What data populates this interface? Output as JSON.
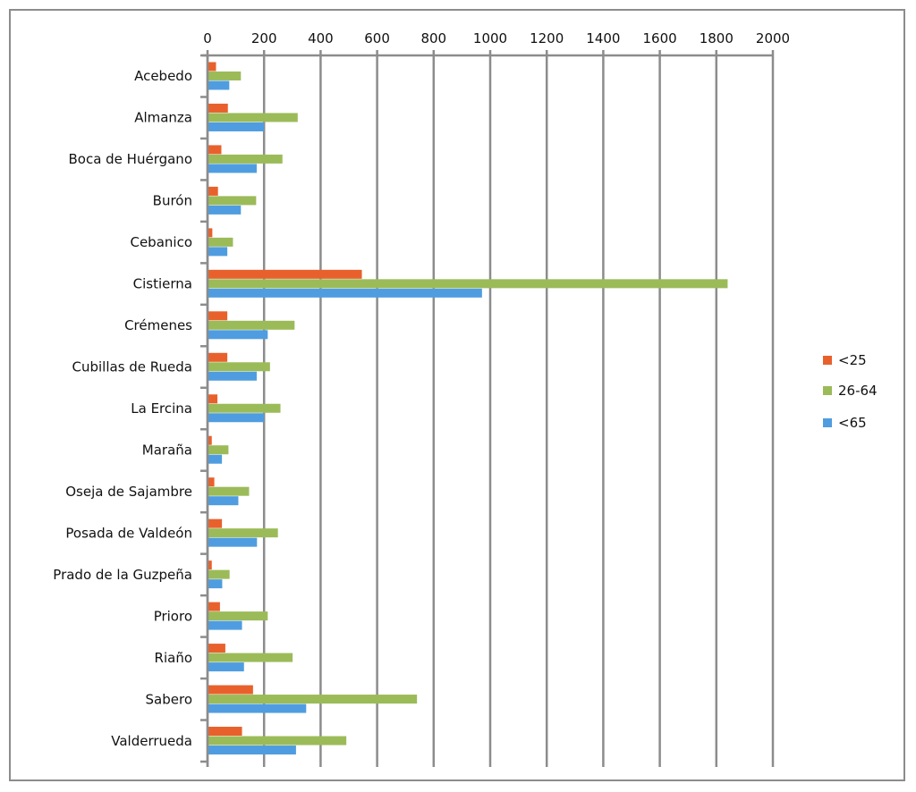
{
  "chart_data": {
    "type": "bar",
    "orientation": "horizontal",
    "title": "",
    "xlabel": "",
    "ylabel": "",
    "xlim": [
      0,
      2000
    ],
    "x_ticks": [
      0,
      200,
      400,
      600,
      800,
      1000,
      1200,
      1400,
      1600,
      1800,
      2000
    ],
    "x_axis_position": "top",
    "grid": "vertical",
    "legend_position": "right",
    "categories": [
      "Acebedo",
      "Almanza",
      "Boca de Huérgano",
      "Burón",
      "Cebanico",
      "Cistierna",
      "Crémenes",
      "Cubillas de Rueda",
      "La Ercina",
      "Maraña",
      "Oseja de Sajambre",
      "Posada de Valdeón",
      "Prado de la Guzpeña",
      "Prioro",
      "Riaño",
      "Sabero",
      "Valderrueda"
    ],
    "series": [
      {
        "name": "<25",
        "color": "#e8612c",
        "values": [
          30,
          72,
          49,
          37,
          17,
          546,
          70,
          70,
          35,
          15,
          24,
          51,
          15,
          44,
          63,
          161,
          122
        ]
      },
      {
        "name": "26-64",
        "color": "#9bbb59",
        "values": [
          118,
          319,
          265,
          172,
          90,
          1840,
          308,
          221,
          258,
          74,
          147,
          249,
          78,
          213,
          301,
          741,
          491
        ]
      },
      {
        "name": "<65",
        "color": "#4f9de0",
        "values": [
          77,
          200,
          174,
          118,
          70,
          971,
          213,
          174,
          200,
          51,
          109,
          175,
          52,
          122,
          129,
          349,
          313
        ]
      }
    ]
  }
}
